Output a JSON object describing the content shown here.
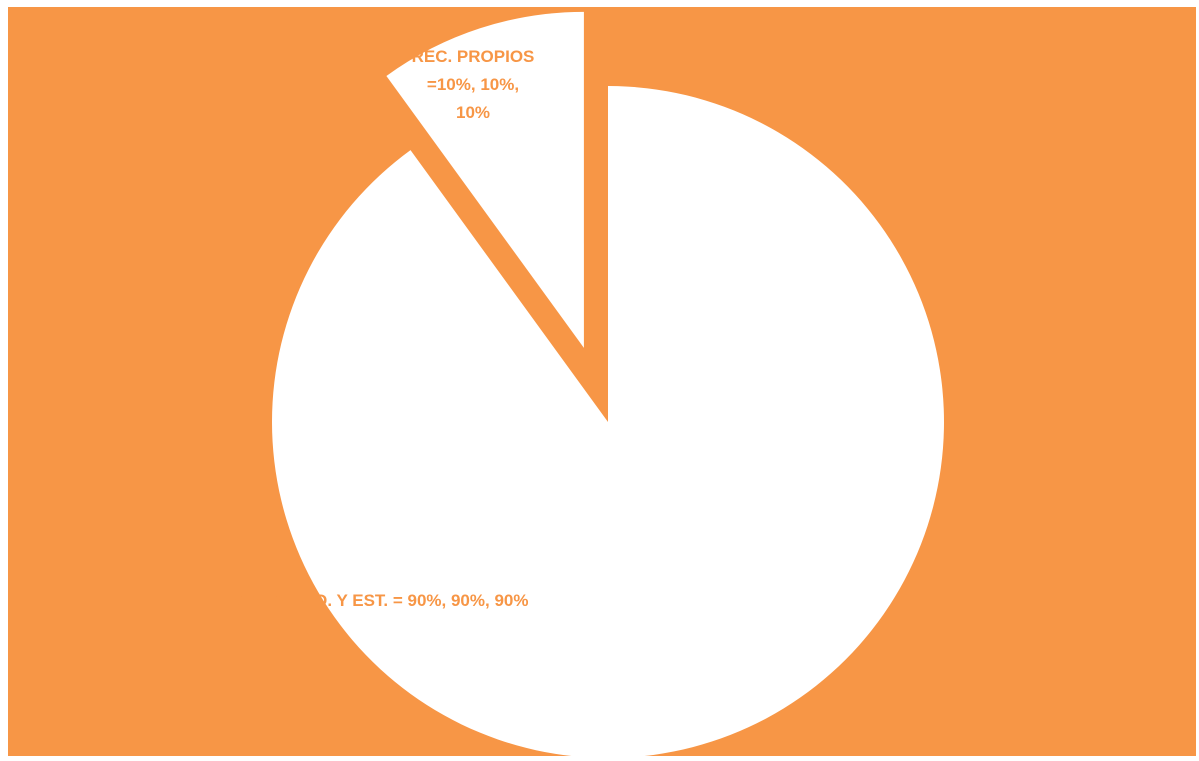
{
  "chart_data": {
    "type": "pie",
    "title": "",
    "background_color": "#F79646",
    "slice_color": "#FFFFFF",
    "label_color": "#F79646",
    "categories": [
      "REC. PROPIOS",
      "PARTS. FED. Y EST."
    ],
    "values": [
      10,
      90
    ],
    "exploded": [
      true,
      false
    ],
    "labels": [
      {
        "lines": [
          "REC. PROPIOS",
          "=10%, 10%,",
          "10%"
        ]
      },
      {
        "lines": [
          "PARTS. FED. Y EST. = 90%, 90%, 90%"
        ]
      }
    ]
  }
}
